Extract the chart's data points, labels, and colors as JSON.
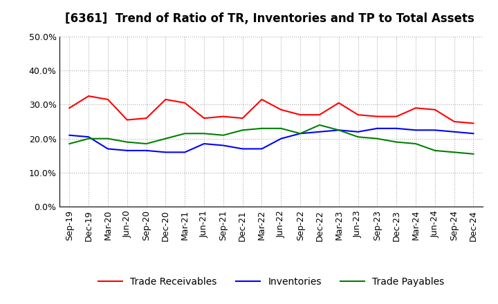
{
  "title": "[6361]  Trend of Ratio of TR, Inventories and TP to Total Assets",
  "x_labels": [
    "Sep-19",
    "Dec-19",
    "Mar-20",
    "Jun-20",
    "Sep-20",
    "Dec-20",
    "Mar-21",
    "Jun-21",
    "Sep-21",
    "Dec-21",
    "Mar-22",
    "Jun-22",
    "Sep-22",
    "Dec-22",
    "Mar-23",
    "Jun-23",
    "Sep-23",
    "Dec-23",
    "Mar-24",
    "Jun-24",
    "Sep-24",
    "Dec-24"
  ],
  "trade_receivables": [
    29.0,
    32.5,
    31.5,
    25.5,
    26.0,
    31.5,
    30.5,
    26.0,
    26.5,
    26.0,
    31.5,
    28.5,
    27.0,
    27.0,
    30.5,
    27.0,
    26.5,
    26.5,
    29.0,
    28.5,
    25.0,
    24.5
  ],
  "inventories": [
    21.0,
    20.5,
    17.0,
    16.5,
    16.5,
    16.0,
    16.0,
    18.5,
    18.0,
    17.0,
    17.0,
    20.0,
    21.5,
    22.0,
    22.5,
    22.0,
    23.0,
    23.0,
    22.5,
    22.5,
    22.0,
    21.5
  ],
  "trade_payables": [
    18.5,
    20.0,
    20.0,
    19.0,
    18.5,
    20.0,
    21.5,
    21.5,
    21.0,
    22.5,
    23.0,
    23.0,
    21.5,
    24.0,
    22.5,
    20.5,
    20.0,
    19.0,
    18.5,
    16.5,
    16.0,
    15.5
  ],
  "ylim": [
    0,
    50
  ],
  "yticks": [
    0,
    10,
    20,
    30,
    40,
    50
  ],
  "line_colors": {
    "trade_receivables": "#FF0000",
    "inventories": "#0000FF",
    "trade_payables": "#008000"
  },
  "legend_labels": [
    "Trade Receivables",
    "Inventories",
    "Trade Payables"
  ],
  "bg_color": "#FFFFFF",
  "grid_color": "#AAAAAA",
  "title_fontsize": 12,
  "axis_fontsize": 9,
  "legend_fontsize": 10
}
